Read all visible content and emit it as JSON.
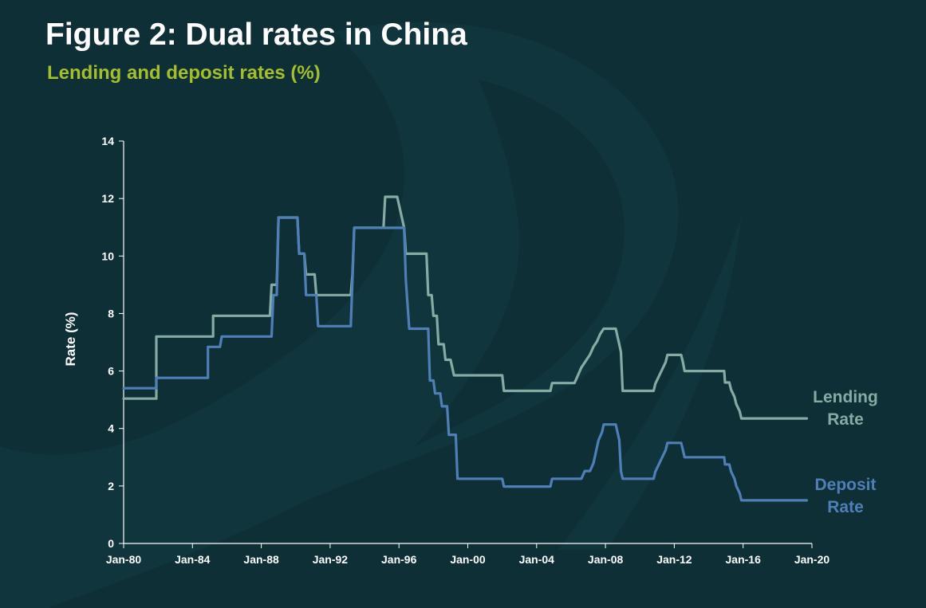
{
  "figure": {
    "title": "Figure 2: Dual rates in China",
    "subtitle": "Lending and deposit rates (%)"
  },
  "colors": {
    "background": "#0f2f36",
    "title": "#ffffff",
    "subtitle": "#a5bf2c",
    "lending": "#84aca4",
    "deposit": "#4f7fb6",
    "axis": "#ffffff"
  },
  "chart_data": {
    "type": "line",
    "title": "Figure 2: Dual rates in China",
    "subtitle": "Lending and deposit rates (%)",
    "xlabel": "",
    "ylabel": "Rate (%)",
    "xlim": [
      1980,
      2020
    ],
    "ylim": [
      0,
      14
    ],
    "yticks": [
      0,
      2,
      4,
      6,
      8,
      10,
      12,
      14
    ],
    "xticks": [
      {
        "value": 1980,
        "label": "Jan-80"
      },
      {
        "value": 1984,
        "label": "Jan-84"
      },
      {
        "value": 1988,
        "label": "Jan-88"
      },
      {
        "value": 1992,
        "label": "Jan-92"
      },
      {
        "value": 1996,
        "label": "Jan-96"
      },
      {
        "value": 2000,
        "label": "Jan-00"
      },
      {
        "value": 2004,
        "label": "Jan-04"
      },
      {
        "value": 2008,
        "label": "Jan-08"
      },
      {
        "value": 2012,
        "label": "Jan-12"
      },
      {
        "value": 2016,
        "label": "Jan-16"
      },
      {
        "value": 2020,
        "label": "Jan-20"
      }
    ],
    "grid": false,
    "legend": "inline-right",
    "series": [
      {
        "name": "Lending Rate",
        "label_lines": [
          "Lending",
          "Rate"
        ],
        "points": [
          [
            1980.0,
            5.04
          ],
          [
            1981.9,
            5.04
          ],
          [
            1981.9,
            7.2
          ],
          [
            1985.2,
            7.2
          ],
          [
            1985.2,
            7.92
          ],
          [
            1988.5,
            7.92
          ],
          [
            1988.6,
            9.0
          ],
          [
            1988.9,
            9.0
          ],
          [
            1989.0,
            11.34
          ],
          [
            1990.1,
            11.34
          ],
          [
            1990.2,
            10.08
          ],
          [
            1990.5,
            10.08
          ],
          [
            1990.6,
            9.36
          ],
          [
            1991.1,
            9.36
          ],
          [
            1991.2,
            8.64
          ],
          [
            1993.2,
            8.64
          ],
          [
            1993.3,
            9.36
          ],
          [
            1993.4,
            10.98
          ],
          [
            1995.1,
            10.98
          ],
          [
            1995.2,
            12.06
          ],
          [
            1995.9,
            12.06
          ],
          [
            1996.3,
            10.98
          ],
          [
            1996.4,
            10.08
          ],
          [
            1997.6,
            10.08
          ],
          [
            1997.7,
            8.64
          ],
          [
            1997.9,
            8.64
          ],
          [
            1998.0,
            7.92
          ],
          [
            1998.2,
            7.92
          ],
          [
            1998.3,
            6.93
          ],
          [
            1998.6,
            6.93
          ],
          [
            1998.7,
            6.39
          ],
          [
            1999.0,
            6.39
          ],
          [
            1999.2,
            5.85
          ],
          [
            2002.0,
            5.85
          ],
          [
            2002.1,
            5.31
          ],
          [
            2004.8,
            5.31
          ],
          [
            2004.9,
            5.58
          ],
          [
            2006.2,
            5.58
          ],
          [
            2006.4,
            5.85
          ],
          [
            2006.6,
            6.12
          ],
          [
            2006.9,
            6.39
          ],
          [
            2007.1,
            6.57
          ],
          [
            2007.3,
            6.84
          ],
          [
            2007.5,
            7.02
          ],
          [
            2007.7,
            7.29
          ],
          [
            2007.9,
            7.47
          ],
          [
            2008.6,
            7.47
          ],
          [
            2008.7,
            7.2
          ],
          [
            2008.8,
            6.93
          ],
          [
            2008.9,
            6.66
          ],
          [
            2009.0,
            5.31
          ],
          [
            2010.8,
            5.31
          ],
          [
            2010.9,
            5.56
          ],
          [
            2011.1,
            5.81
          ],
          [
            2011.3,
            6.06
          ],
          [
            2011.5,
            6.31
          ],
          [
            2011.6,
            6.56
          ],
          [
            2012.4,
            6.56
          ],
          [
            2012.5,
            6.31
          ],
          [
            2012.6,
            6.0
          ],
          [
            2014.9,
            6.0
          ],
          [
            2014.95,
            5.6
          ],
          [
            2015.2,
            5.6
          ],
          [
            2015.3,
            5.35
          ],
          [
            2015.5,
            5.1
          ],
          [
            2015.6,
            4.85
          ],
          [
            2015.8,
            4.6
          ],
          [
            2015.9,
            4.35
          ],
          [
            2019.7,
            4.35
          ]
        ]
      },
      {
        "name": "Deposit Rate",
        "label_lines": [
          "Deposit",
          "Rate"
        ],
        "points": [
          [
            1980.0,
            5.4
          ],
          [
            1981.9,
            5.4
          ],
          [
            1981.9,
            5.76
          ],
          [
            1984.9,
            5.76
          ],
          [
            1984.9,
            6.84
          ],
          [
            1985.6,
            6.84
          ],
          [
            1985.7,
            7.2
          ],
          [
            1988.6,
            7.2
          ],
          [
            1988.7,
            8.64
          ],
          [
            1988.9,
            8.64
          ],
          [
            1989.0,
            11.34
          ],
          [
            1990.1,
            11.34
          ],
          [
            1990.2,
            10.08
          ],
          [
            1990.5,
            10.08
          ],
          [
            1990.6,
            8.64
          ],
          [
            1991.2,
            8.64
          ],
          [
            1991.3,
            7.56
          ],
          [
            1993.2,
            7.56
          ],
          [
            1993.3,
            9.18
          ],
          [
            1993.4,
            10.98
          ],
          [
            1996.3,
            10.98
          ],
          [
            1996.4,
            9.18
          ],
          [
            1996.6,
            7.47
          ],
          [
            1997.7,
            7.47
          ],
          [
            1997.8,
            5.67
          ],
          [
            1998.0,
            5.67
          ],
          [
            1998.1,
            5.22
          ],
          [
            1998.4,
            5.22
          ],
          [
            1998.5,
            4.77
          ],
          [
            1998.8,
            4.77
          ],
          [
            1998.9,
            3.78
          ],
          [
            1999.3,
            3.78
          ],
          [
            1999.4,
            2.25
          ],
          [
            2002.0,
            2.25
          ],
          [
            2002.1,
            1.98
          ],
          [
            2004.8,
            1.98
          ],
          [
            2004.9,
            2.25
          ],
          [
            2006.6,
            2.25
          ],
          [
            2006.8,
            2.52
          ],
          [
            2007.1,
            2.52
          ],
          [
            2007.3,
            2.79
          ],
          [
            2007.4,
            3.06
          ],
          [
            2007.5,
            3.33
          ],
          [
            2007.6,
            3.6
          ],
          [
            2007.8,
            3.87
          ],
          [
            2007.9,
            4.14
          ],
          [
            2008.6,
            4.14
          ],
          [
            2008.7,
            3.87
          ],
          [
            2008.8,
            3.6
          ],
          [
            2008.9,
            2.52
          ],
          [
            2009.0,
            2.25
          ],
          [
            2010.8,
            2.25
          ],
          [
            2010.9,
            2.5
          ],
          [
            2011.1,
            2.75
          ],
          [
            2011.3,
            3.0
          ],
          [
            2011.5,
            3.25
          ],
          [
            2011.6,
            3.5
          ],
          [
            2012.4,
            3.5
          ],
          [
            2012.5,
            3.25
          ],
          [
            2012.6,
            3.0
          ],
          [
            2014.9,
            3.0
          ],
          [
            2014.95,
            2.75
          ],
          [
            2015.2,
            2.75
          ],
          [
            2015.3,
            2.5
          ],
          [
            2015.5,
            2.25
          ],
          [
            2015.6,
            2.0
          ],
          [
            2015.8,
            1.75
          ],
          [
            2015.9,
            1.5
          ],
          [
            2019.7,
            1.5
          ]
        ]
      }
    ]
  }
}
